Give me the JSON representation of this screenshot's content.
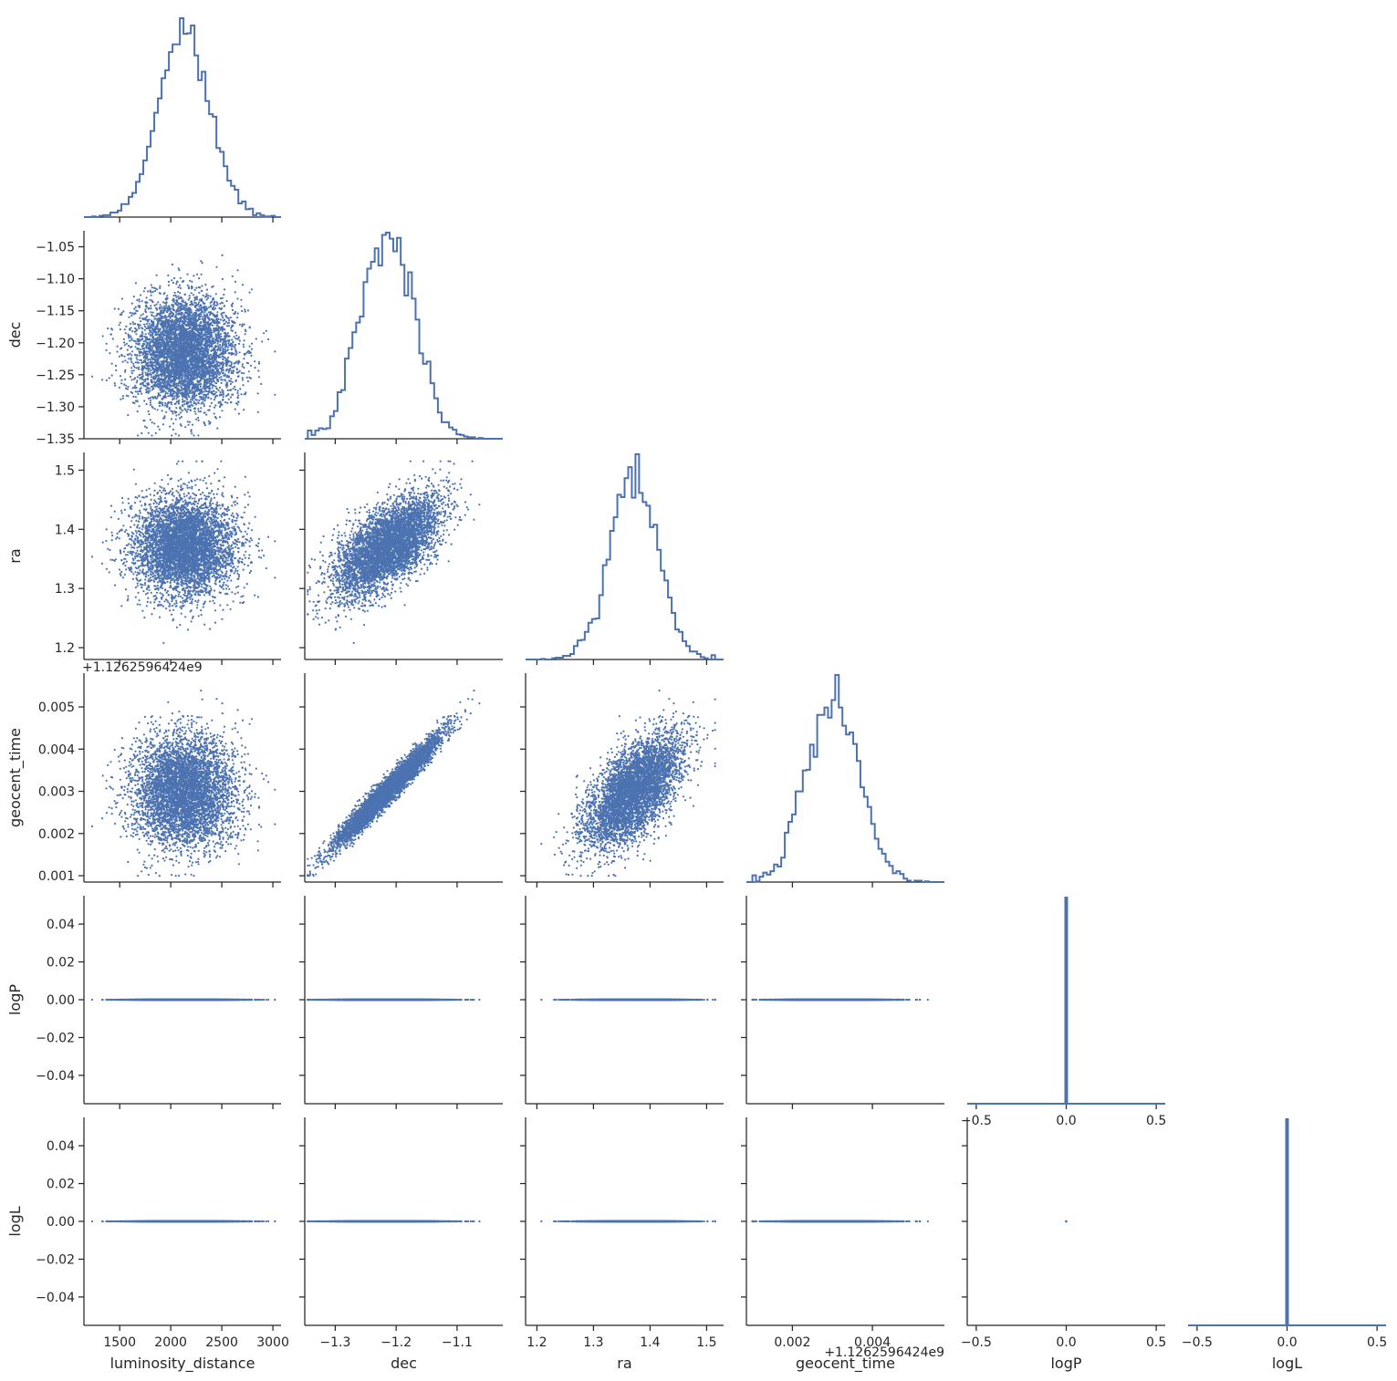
{
  "chart_data": {
    "type": "scatter",
    "variables": [
      "luminosity_distance",
      "dec",
      "ra",
      "geocent_time",
      "logP",
      "logL"
    ],
    "layout": "corner",
    "diagonal_type": "histogram (step)",
    "off_diagonal_type": "scatter",
    "grid": false,
    "legend": "none",
    "series_color": "#4c72b0",
    "axes": {
      "luminosity_distance": {
        "label": "luminosity_distance",
        "range": [
          1150,
          3080
        ],
        "ticks": [
          1500,
          2000,
          2500,
          3000
        ],
        "tick_labels": [
          "1500",
          "2000",
          "2500",
          "3000"
        ],
        "offset": ""
      },
      "dec": {
        "label": "dec",
        "range": [
          -1.35,
          -1.025
        ],
        "ticks": [
          -1.35,
          -1.3,
          -1.25,
          -1.2,
          -1.15,
          -1.1,
          -1.05
        ],
        "tick_labels": [
          "−1.35",
          "−1.30",
          "−1.25",
          "−1.20",
          "−1.15",
          "−1.10",
          "−1.05"
        ],
        "x_ticks": [
          -1.3,
          -1.2,
          -1.1
        ],
        "x_tick_labels": [
          "−1.3",
          "−1.2",
          "−1.1"
        ],
        "offset": ""
      },
      "ra": {
        "label": "ra",
        "range": [
          1.18,
          1.53
        ],
        "ticks": [
          1.2,
          1.3,
          1.4,
          1.5
        ],
        "tick_labels": [
          "1.2",
          "1.3",
          "1.4",
          "1.5"
        ],
        "x_ticks": [
          1.2,
          1.3,
          1.4,
          1.5
        ],
        "x_tick_labels": [
          "1.2",
          "1.3",
          "1.4",
          "1.5"
        ],
        "offset": ""
      },
      "geocent_time": {
        "label": "geocent_time",
        "range": [
          0.00085,
          0.0058
        ],
        "ticks": [
          0.001,
          0.002,
          0.003,
          0.004,
          0.005
        ],
        "tick_labels": [
          "0.001",
          "0.002",
          "0.003",
          "0.004",
          "0.005"
        ],
        "x_ticks": [
          0.002,
          0.004
        ],
        "x_tick_labels": [
          "0.002",
          "0.004"
        ],
        "offset": "+1.1262596424e9"
      },
      "logP": {
        "label": "logP",
        "range": [
          -0.055,
          0.055
        ],
        "ticks": [
          -0.04,
          -0.02,
          0.0,
          0.02,
          0.04
        ],
        "tick_labels": [
          "−0.04",
          "−0.02",
          "0.00",
          "0.02",
          "0.04"
        ],
        "x_range": [
          -0.55,
          0.55
        ],
        "x_ticks": [
          -0.5,
          0.0,
          0.5
        ],
        "x_tick_labels": [
          "−0.5",
          "0.0",
          "0.5"
        ],
        "offset": ""
      },
      "logL": {
        "label": "logL",
        "range": [
          -0.055,
          0.055
        ],
        "ticks": [
          -0.04,
          -0.02,
          0.0,
          0.02,
          0.04
        ],
        "tick_labels": [
          "−0.04",
          "−0.02",
          "0.00",
          "0.02",
          "0.04"
        ],
        "x_range": [
          -0.55,
          0.55
        ],
        "x_ticks": [
          -0.5,
          0.0,
          0.5
        ],
        "x_tick_labels": [
          "−0.5",
          "0.0",
          "0.5"
        ],
        "offset": ""
      }
    },
    "distributions": {
      "luminosity_distance": {
        "mean": 2130,
        "std": 250,
        "min": 1230,
        "max": 3020
      },
      "dec": {
        "mean": -1.215,
        "std": 0.043,
        "min": -1.345,
        "max": -1.04
      },
      "ra": {
        "mean": 1.37,
        "std": 0.042,
        "min": 1.195,
        "max": 1.515
      },
      "geocent_time": {
        "mean": 0.003,
        "std": 0.00065,
        "min": 0.001,
        "max": 0.0055
      },
      "logP": {
        "constant": 0.0
      },
      "logL": {
        "constant": 0.0
      }
    },
    "correlations": {
      "dec|ra": 0.62,
      "dec|geocent_time": 0.97,
      "ra|geocent_time": 0.55
    },
    "sample_count": 5000
  }
}
